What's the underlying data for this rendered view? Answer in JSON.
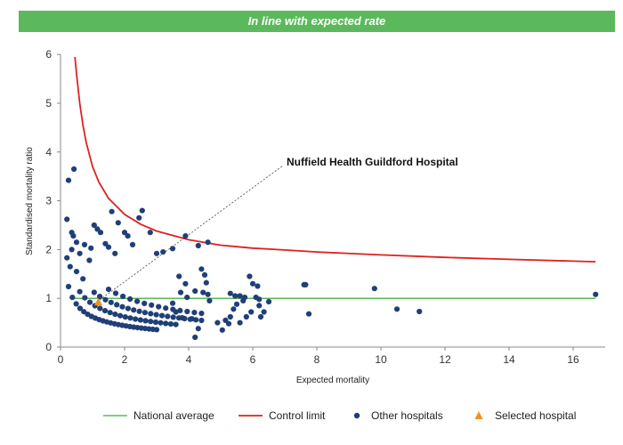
{
  "banner": {
    "text": "In line with expected rate"
  },
  "chart_data": {
    "type": "scatter",
    "xlabel": "Expected mortality",
    "ylabel": "Standardised mortality ratio",
    "xlim": [
      0,
      17
    ],
    "ylim": [
      0,
      6
    ],
    "xticks": [
      0,
      2,
      4,
      6,
      8,
      10,
      12,
      14,
      16
    ],
    "yticks": [
      0,
      1,
      2,
      3,
      4,
      5,
      6
    ],
    "grid": false,
    "legend_position": "bottom",
    "annotation": {
      "text": "Nuffield Health Guildford Hospital",
      "x": 1.18,
      "y": 0.92
    },
    "colors": {
      "national_average": "#5cb85c",
      "control_limit": "#e02020",
      "other_hospitals": "#1f3f77",
      "selected_hospital": "#f0901e",
      "banner": "#5cb85c"
    },
    "series": [
      {
        "name": "National average",
        "kind": "line",
        "x": [
          0.4,
          16.7
        ],
        "y": [
          1,
          1
        ]
      },
      {
        "name": "Control limit",
        "kind": "line",
        "x": [
          0.45,
          0.5,
          0.6,
          0.7,
          0.8,
          1.0,
          1.2,
          1.5,
          2.0,
          2.5,
          3.0,
          4.0,
          5.0,
          6.0,
          7.0,
          8.0,
          10.0,
          12.0,
          14.0,
          16.7
        ],
        "y": [
          5.95,
          5.6,
          5.0,
          4.55,
          4.2,
          3.7,
          3.38,
          3.05,
          2.72,
          2.52,
          2.38,
          2.2,
          2.09,
          2.03,
          1.99,
          1.95,
          1.89,
          1.84,
          1.8,
          1.75
        ]
      },
      {
        "name": "Other hospitals",
        "kind": "scatter",
        "points": [
          [
            0.25,
            3.42
          ],
          [
            0.42,
            3.65
          ],
          [
            0.2,
            2.62
          ],
          [
            0.35,
            2.35
          ],
          [
            0.4,
            2.28
          ],
          [
            0.5,
            2.15
          ],
          [
            0.35,
            2.0
          ],
          [
            0.2,
            1.83
          ],
          [
            0.3,
            1.65
          ],
          [
            0.6,
            1.92
          ],
          [
            0.75,
            2.1
          ],
          [
            0.9,
            1.78
          ],
          [
            0.5,
            1.55
          ],
          [
            0.7,
            1.4
          ],
          [
            0.95,
            2.03
          ],
          [
            1.05,
            2.5
          ],
          [
            1.15,
            2.42
          ],
          [
            1.25,
            2.35
          ],
          [
            1.4,
            2.12
          ],
          [
            1.5,
            2.05
          ],
          [
            1.6,
            2.78
          ],
          [
            1.7,
            1.92
          ],
          [
            1.8,
            2.55
          ],
          [
            2.0,
            2.35
          ],
          [
            2.1,
            2.28
          ],
          [
            2.25,
            2.1
          ],
          [
            2.45,
            2.65
          ],
          [
            2.55,
            2.8
          ],
          [
            2.8,
            2.35
          ],
          [
            3.0,
            1.92
          ],
          [
            3.2,
            1.95
          ],
          [
            3.5,
            2.02
          ],
          [
            3.9,
            2.28
          ],
          [
            4.3,
            2.08
          ],
          [
            4.6,
            2.15
          ],
          [
            4.4,
            1.6
          ],
          [
            4.5,
            1.48
          ],
          [
            4.55,
            1.32
          ],
          [
            4.2,
            1.15
          ],
          [
            4.45,
            1.12
          ],
          [
            4.6,
            1.08
          ],
          [
            4.65,
            0.95
          ],
          [
            4.1,
            0.58
          ],
          [
            4.3,
            0.38
          ],
          [
            4.2,
            0.2
          ],
          [
            3.7,
            1.45
          ],
          [
            3.9,
            1.3
          ],
          [
            3.75,
            1.12
          ],
          [
            3.95,
            1.02
          ],
          [
            3.5,
            0.9
          ],
          [
            3.6,
            0.72
          ],
          [
            3.8,
            0.6
          ],
          [
            5.3,
            1.1
          ],
          [
            5.45,
            1.05
          ],
          [
            5.6,
            1.05
          ],
          [
            5.75,
            1.02
          ],
          [
            5.7,
            0.95
          ],
          [
            5.5,
            0.88
          ],
          [
            5.4,
            0.78
          ],
          [
            5.3,
            0.62
          ],
          [
            5.15,
            0.55
          ],
          [
            4.9,
            0.5
          ],
          [
            5.05,
            0.35
          ],
          [
            5.25,
            0.48
          ],
          [
            5.6,
            0.5
          ],
          [
            5.8,
            0.62
          ],
          [
            5.95,
            0.72
          ],
          [
            5.9,
            1.45
          ],
          [
            6.0,
            1.3
          ],
          [
            6.15,
            1.25
          ],
          [
            6.1,
            1.02
          ],
          [
            6.2,
            0.98
          ],
          [
            6.2,
            0.85
          ],
          [
            6.35,
            0.72
          ],
          [
            6.25,
            0.62
          ],
          [
            6.5,
            0.93
          ],
          [
            7.6,
            1.28
          ],
          [
            7.65,
            1.28
          ],
          [
            7.75,
            0.68
          ],
          [
            9.8,
            1.2
          ],
          [
            10.5,
            0.78
          ],
          [
            11.2,
            0.73
          ],
          [
            16.7,
            1.08
          ]
        ],
        "curves": [
          {
            "k": 1.15,
            "x_start": 1.05,
            "x_end": 4.4,
            "n": 20
          },
          {
            "k": 0.88,
            "x_start": 0.6,
            "x_end": 3.6,
            "n": 20
          },
          {
            "k": 0.62,
            "x_start": 0.25,
            "x_end": 3.0,
            "n": 24
          },
          {
            "k": 1.45,
            "x_start": 1.5,
            "x_end": 4.4,
            "n": 14
          }
        ]
      },
      {
        "name": "Selected hospital",
        "kind": "marker",
        "x": [
          1.18
        ],
        "y": [
          0.92
        ]
      }
    ]
  },
  "legend": {
    "national_average": "National average",
    "control_limit": "Control limit",
    "other_hospitals": "Other hospitals",
    "selected_hospital": "Selected hospital"
  }
}
